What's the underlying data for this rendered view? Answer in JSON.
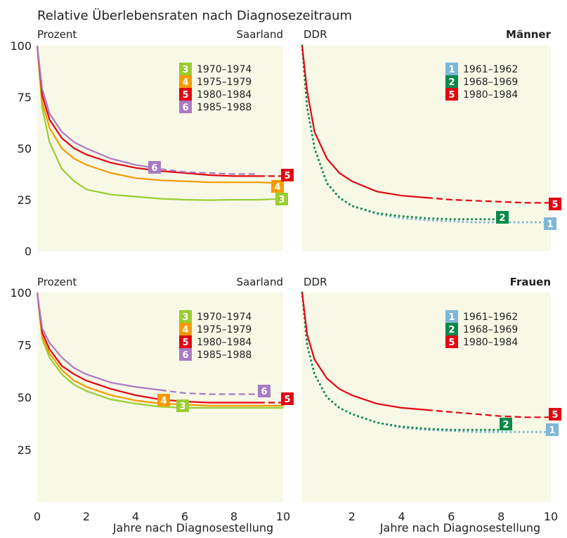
{
  "chart_data": {
    "type": "line",
    "title": "Relative Überlebensraten nach Diagnosezeitraum",
    "ylabel": "Prozent",
    "xlabel": "Jahre nach Diagnosestellung",
    "colors": {
      "3": "#9acd32",
      "4": "#f59b00",
      "5": "#e30613",
      "6": "#a97bc2",
      "1": "#7fb8d6",
      "2": "#0a8a4a",
      "background": "#f8f8e7"
    },
    "panels": [
      {
        "id": "men-saarland",
        "group": "Männer",
        "region": "Saarland",
        "ylabel": "Prozent",
        "corner_label": "",
        "yticks": [
          "100",
          "75",
          "50",
          "25",
          "0"
        ],
        "xticks": [],
        "xlabel": "",
        "ylim": [
          0,
          100
        ],
        "xlim": [
          0,
          10
        ],
        "series": [
          {
            "name": "1970–1974",
            "badge": "3",
            "x": [
              0,
              0.2,
              0.5,
              1,
              1.5,
              2,
              3,
              4,
              5,
              6,
              7,
              8,
              9,
              10
            ],
            "y": [
              100,
              70,
              53,
              40,
              34,
              30,
              27.5,
              26.5,
              25.5,
              25,
              24.8,
              25,
              25,
              25.5
            ],
            "dash_after": null
          },
          {
            "name": "1975–1979",
            "badge": "4",
            "x": [
              0,
              0.2,
              0.5,
              1,
              1.5,
              2,
              3,
              4,
              5,
              6,
              7,
              8,
              9,
              10
            ],
            "y": [
              100,
              73,
              60,
              50,
              45,
              42,
              38,
              35.5,
              34.5,
              34,
              33.5,
              33.5,
              33.5,
              33
            ],
            "dash_after": null
          },
          {
            "name": "1980–1984",
            "badge": "5",
            "x": [
              0,
              0.2,
              0.5,
              1,
              1.5,
              2,
              3,
              4,
              5,
              6,
              7,
              8,
              9,
              10
            ],
            "y": [
              100,
              76,
              64,
              55,
              50,
              47,
              43,
              40.5,
              39,
              38,
              37,
              36.5,
              36.5,
              36.5
            ],
            "dash_after": 9
          },
          {
            "name": "1985–1988",
            "badge": "6",
            "x": [
              0,
              0.2,
              0.5,
              1,
              1.5,
              2,
              3,
              4,
              5,
              6,
              7,
              8,
              9
            ],
            "y": [
              100,
              79,
              67,
              58,
              53,
              50,
              45,
              42,
              40,
              38.5,
              38,
              37.5,
              37.5
            ],
            "dash_after": 5
          }
        ],
        "legend": [
          "3",
          "4",
          "5",
          "6"
        ]
      },
      {
        "id": "men-ddr",
        "group": "Männer",
        "region": "DDR",
        "ylabel": "",
        "corner_label": "Männer",
        "yticks": [],
        "xticks": [],
        "xlabel": "",
        "ylim": [
          0,
          100
        ],
        "xlim": [
          0,
          10
        ],
        "series": [
          {
            "name": "1961–1962",
            "badge": "1",
            "style": "dotted",
            "x": [
              0,
              0.2,
              0.5,
              1,
              1.5,
              2,
              3,
              4,
              5,
              6,
              7,
              8,
              9,
              10
            ],
            "y": [
              100,
              70,
              50,
              33,
              26,
              22,
              18,
              16,
              15,
              14.5,
              14,
              14,
              14,
              14
            ]
          },
          {
            "name": "1968–1969",
            "badge": "2",
            "style": "dotted",
            "x": [
              0,
              0.2,
              0.5,
              1,
              1.5,
              2,
              3,
              4,
              5,
              6,
              7,
              8
            ],
            "y": [
              100,
              70,
              50,
              33,
              26,
              22,
              18.5,
              17,
              16,
              15.5,
              15.5,
              15.5
            ]
          },
          {
            "name": "1980–1984",
            "badge": "5",
            "x": [
              0,
              0.2,
              0.5,
              1,
              1.5,
              2,
              3,
              4,
              5,
              6,
              7,
              8,
              9,
              10
            ],
            "y": [
              100,
              78,
              58,
              45,
              38,
              34,
              29,
              27,
              26,
              25,
              24.5,
              24,
              23.5,
              23.5
            ],
            "dash_after": 5
          }
        ],
        "legend": [
          "1",
          "2",
          "5"
        ]
      },
      {
        "id": "women-saarland",
        "group": "Frauen",
        "region": "Saarland",
        "ylabel": "Prozent",
        "corner_label": "",
        "yticks": [
          "100",
          "75",
          "50",
          "25"
        ],
        "xticks": [
          "0",
          "2",
          "4",
          "6",
          "8",
          "10"
        ],
        "xlabel": "Jahre nach Diagnosestellung",
        "ylim": [
          0,
          100
        ],
        "xlim": [
          0,
          10
        ],
        "series": [
          {
            "name": "1970–1974",
            "badge": "3",
            "x": [
              0,
              0.2,
              0.5,
              1,
              1.5,
              2,
              3,
              4,
              5,
              6,
              7,
              8,
              9,
              10
            ],
            "y": [
              100,
              78,
              69,
              61,
              56,
              53,
              49,
              47,
              45.5,
              45,
              45,
              45,
              45,
              45
            ],
            "dash_after": null
          },
          {
            "name": "1975–1979",
            "badge": "4",
            "x": [
              0,
              0.2,
              0.5,
              1,
              1.5,
              2,
              3,
              4,
              5,
              6,
              7,
              8,
              9,
              10
            ],
            "y": [
              100,
              79,
              71,
              63,
              58,
              55,
              51,
              48.5,
              47,
              46.5,
              46,
              46,
              46,
              46
            ],
            "dash_after": null
          },
          {
            "name": "1980–1984",
            "badge": "5",
            "x": [
              0,
              0.2,
              0.5,
              1,
              1.5,
              2,
              3,
              4,
              5,
              6,
              7,
              8,
              9,
              10
            ],
            "y": [
              100,
              81,
              73,
              65,
              61,
              58,
              54,
              51,
              49,
              48,
              47.5,
              47.5,
              47.5,
              47.5
            ],
            "dash_after": 9
          },
          {
            "name": "1985–1988",
            "badge": "6",
            "x": [
              0,
              0.2,
              0.5,
              1,
              1.5,
              2,
              3,
              4,
              5,
              6,
              7,
              8,
              9
            ],
            "y": [
              100,
              83,
              76,
              69,
              64,
              61,
              57,
              55,
              53.5,
              52,
              51.5,
              51.5,
              51.5
            ],
            "dash_after": 5
          }
        ],
        "legend": [
          "3",
          "4",
          "5",
          "6"
        ]
      },
      {
        "id": "women-ddr",
        "group": "Frauen",
        "region": "DDR",
        "ylabel": "",
        "corner_label": "Frauen",
        "yticks": [],
        "xticks": [
          "2",
          "4",
          "6",
          "8",
          "10"
        ],
        "xlabel": "Jahre nach Diagnosestellung",
        "ylim": [
          0,
          100
        ],
        "xlim": [
          0,
          10
        ],
        "series": [
          {
            "name": "1961–1962",
            "badge": "1",
            "style": "dotted",
            "x": [
              0,
              0.2,
              0.5,
              1,
              1.5,
              2,
              3,
              4,
              5,
              6,
              7,
              8,
              9,
              10
            ],
            "y": [
              100,
              75,
              61,
              50,
              45,
              42,
              38,
              35.5,
              34.5,
              34,
              33.5,
              33.5,
              33.5,
              33.5
            ]
          },
          {
            "name": "1968–1969",
            "badge": "2",
            "style": "dotted",
            "x": [
              0,
              0.2,
              0.5,
              1,
              1.5,
              2,
              3,
              4,
              5,
              6,
              7,
              8
            ],
            "y": [
              100,
              75,
              61,
              50,
              45,
              42,
              38,
              36,
              35,
              34.5,
              34.5,
              34.5
            ]
          },
          {
            "name": "1980–1984",
            "badge": "5",
            "x": [
              0,
              0.2,
              0.5,
              1,
              1.5,
              2,
              3,
              4,
              5,
              6,
              7,
              8,
              9,
              10
            ],
            "y": [
              100,
              80,
              68,
              59,
              54,
              51,
              47,
              45,
              44,
              43,
              42,
              41,
              40.5,
              40.5
            ],
            "dash_after": 5
          }
        ],
        "legend": [
          "1",
          "2",
          "5"
        ]
      }
    ]
  }
}
